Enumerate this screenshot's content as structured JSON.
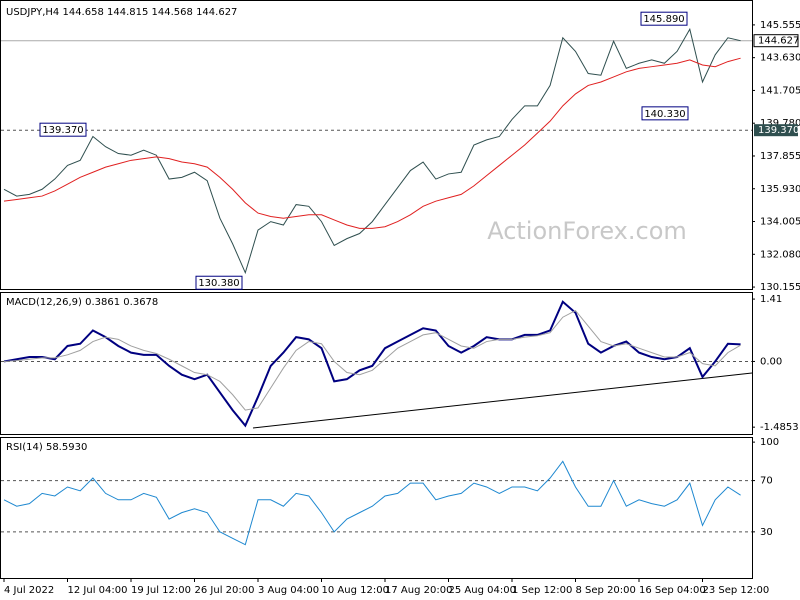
{
  "chart_data": [
    {
      "type": "line",
      "title": "USDJPY,H4  144.658 144.815 144.568 144.627",
      "watermark": "ActionForex.com",
      "ylim": [
        130.1,
        146.9
      ],
      "yticks": [
        {
          "value": 145.555,
          "label": "145.555"
        },
        {
          "value": 143.63,
          "label": "143.630"
        },
        141.705,
        {
          "value": 139.78,
          "label": "139.780"
        },
        137.855,
        {
          "value": 135.93,
          "label": "135.930"
        },
        134.005,
        {
          "value": 132.08,
          "label": "132.080"
        },
        130.155
      ],
      "series": [
        {
          "color": "#2f4f4f",
          "values": [
            135.9,
            135.5,
            135.6,
            135.9,
            136.5,
            137.3,
            137.6,
            139.0,
            138.4,
            138.0,
            137.9,
            138.2,
            137.9,
            136.5,
            136.6,
            136.9,
            136.4,
            134.2,
            132.7,
            131.0,
            133.5,
            134.0,
            133.8,
            135.0,
            134.9,
            134.0,
            132.6,
            133.0,
            133.3,
            134.0,
            135.0,
            136.0,
            137.0,
            137.5,
            136.5,
            136.8,
            136.9,
            138.5,
            138.8,
            139.0,
            140.0,
            140.8,
            140.8,
            142.0,
            144.8,
            144.0,
            142.7,
            142.6,
            144.6,
            143.0,
            143.3,
            143.5,
            143.3,
            144.0,
            145.3,
            142.2,
            143.8,
            144.8,
            144.627
          ]
        },
        {
          "color": "#e02020",
          "values": [
            135.2,
            135.3,
            135.4,
            135.5,
            135.8,
            136.2,
            136.6,
            136.9,
            137.2,
            137.4,
            137.6,
            137.7,
            137.8,
            137.7,
            137.5,
            137.4,
            137.2,
            136.6,
            135.9,
            135.1,
            134.5,
            134.3,
            134.2,
            134.3,
            134.4,
            134.4,
            134.1,
            133.8,
            133.6,
            133.6,
            133.7,
            134.0,
            134.4,
            134.9,
            135.2,
            135.4,
            135.6,
            136.1,
            136.7,
            137.3,
            137.9,
            138.5,
            139.2,
            139.9,
            140.8,
            141.5,
            142.0,
            142.2,
            142.5,
            142.8,
            143.0,
            143.1,
            143.2,
            143.3,
            143.5,
            143.2,
            143.1,
            143.4,
            143.6
          ]
        }
      ],
      "levels": [
        {
          "value": 139.37,
          "label": "139.370",
          "style": "dashed"
        }
      ],
      "last_price": {
        "value": 144.627,
        "label": "144.627"
      },
      "annotations": [
        {
          "value": 145.89,
          "label": "145.890"
        },
        {
          "value": 140.33,
          "label": "140.330"
        },
        {
          "value": 139.37,
          "label": "139.370"
        },
        {
          "value": 130.38,
          "label": "130.380"
        }
      ]
    },
    {
      "type": "line",
      "title": "MACD(12,26,9) 0.3861 0.3678",
      "ylim": [
        -1.64,
        1.57
      ],
      "yticks": [
        1.41,
        {
          "value": 0,
          "label": "0.00"
        },
        -1.4853
      ],
      "series": [
        {
          "color": "#000080",
          "values": [
            0.0,
            0.05,
            0.1,
            0.1,
            0.05,
            0.35,
            0.4,
            0.7,
            0.55,
            0.35,
            0.2,
            0.15,
            0.15,
            -0.1,
            -0.3,
            -0.4,
            -0.3,
            -0.7,
            -1.1,
            -1.45,
            -0.8,
            -0.1,
            0.2,
            0.55,
            0.5,
            0.3,
            -0.45,
            -0.4,
            -0.2,
            -0.1,
            0.3,
            0.45,
            0.6,
            0.75,
            0.7,
            0.35,
            0.2,
            0.35,
            0.55,
            0.5,
            0.5,
            0.6,
            0.6,
            0.7,
            1.35,
            1.1,
            0.4,
            0.2,
            0.35,
            0.45,
            0.2,
            0.1,
            0.05,
            0.1,
            0.3,
            -0.35,
            0.0,
            0.4,
            0.3861
          ]
        },
        {
          "color": "#a0a0a0",
          "values": [
            0.0,
            0.02,
            0.05,
            0.08,
            0.08,
            0.15,
            0.25,
            0.45,
            0.55,
            0.5,
            0.35,
            0.25,
            0.18,
            0.05,
            -0.1,
            -0.25,
            -0.3,
            -0.45,
            -0.75,
            -1.1,
            -1.05,
            -0.6,
            -0.15,
            0.25,
            0.45,
            0.4,
            0.0,
            -0.25,
            -0.3,
            -0.2,
            0.05,
            0.3,
            0.45,
            0.6,
            0.65,
            0.5,
            0.35,
            0.3,
            0.45,
            0.5,
            0.5,
            0.55,
            0.58,
            0.65,
            1.0,
            1.15,
            0.8,
            0.45,
            0.35,
            0.4,
            0.3,
            0.2,
            0.1,
            0.1,
            0.2,
            -0.05,
            -0.1,
            0.2,
            0.3678
          ]
        }
      ],
      "levels": [
        {
          "value": 0,
          "style": "dashed"
        }
      ]
    },
    {
      "type": "line",
      "title": "RSI(14) 58.5930",
      "ylim": [
        -6,
        104
      ],
      "yticks": [
        100,
        70,
        30
      ],
      "categories": [
        "4 Jul 2022",
        null,
        null,
        null,
        null,
        "12 Jul 04:00",
        null,
        null,
        null,
        null,
        "19 Jul 12:00",
        null,
        null,
        null,
        null,
        "26 Jul 20:00",
        null,
        null,
        null,
        null,
        "3 Aug 04:00",
        null,
        null,
        null,
        null,
        "10 Aug 12:00",
        null,
        null,
        null,
        null,
        "17 Aug 20:00",
        null,
        null,
        null,
        null,
        "25 Aug 04:00",
        null,
        null,
        null,
        null,
        "1 Sep 12:00",
        null,
        null,
        null,
        null,
        "8 Sep 20:00",
        null,
        null,
        null,
        null,
        "16 Sep 04:00",
        null,
        null,
        null,
        null,
        "23 Sep 12:00",
        null,
        null,
        null
      ],
      "series": [
        {
          "color": "#1e88d0",
          "values": [
            55,
            50,
            52,
            60,
            58,
            65,
            62,
            72,
            60,
            55,
            55,
            60,
            57,
            40,
            45,
            48,
            45,
            30,
            25,
            20,
            55,
            55,
            50,
            60,
            58,
            45,
            30,
            40,
            45,
            50,
            58,
            60,
            68,
            68,
            55,
            58,
            60,
            68,
            65,
            60,
            65,
            65,
            62,
            72,
            85,
            65,
            50,
            50,
            70,
            50,
            55,
            52,
            50,
            55,
            68,
            35,
            55,
            65,
            58.593
          ]
        }
      ],
      "levels": [
        {
          "value": 70,
          "style": "dashed"
        },
        {
          "value": 30,
          "style": "dashed"
        }
      ]
    }
  ]
}
